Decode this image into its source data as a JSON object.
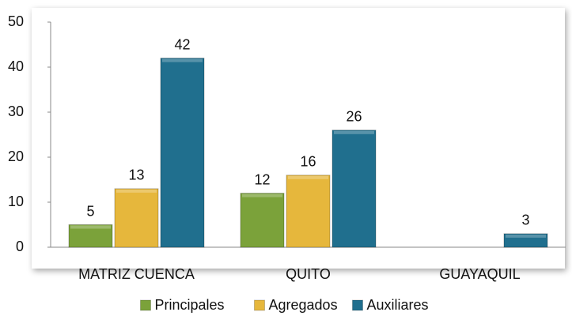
{
  "chart_data": {
    "type": "bar",
    "categories": [
      "MATRIZ CUENCA",
      "QUITO",
      "GUAYAQUIL"
    ],
    "series": [
      {
        "name": "Principales",
        "color": "#7ba23a",
        "values": [
          5,
          12,
          null
        ]
      },
      {
        "name": "Agregados",
        "color": "#e6b73c",
        "values": [
          13,
          16,
          null
        ]
      },
      {
        "name": "Auxiliares",
        "color": "#206f8e",
        "values": [
          42,
          26,
          3
        ]
      }
    ],
    "ylim": [
      0,
      50
    ],
    "yticks": [
      0,
      10,
      20,
      30,
      40,
      50
    ],
    "grid": false,
    "legend": "bottom"
  }
}
